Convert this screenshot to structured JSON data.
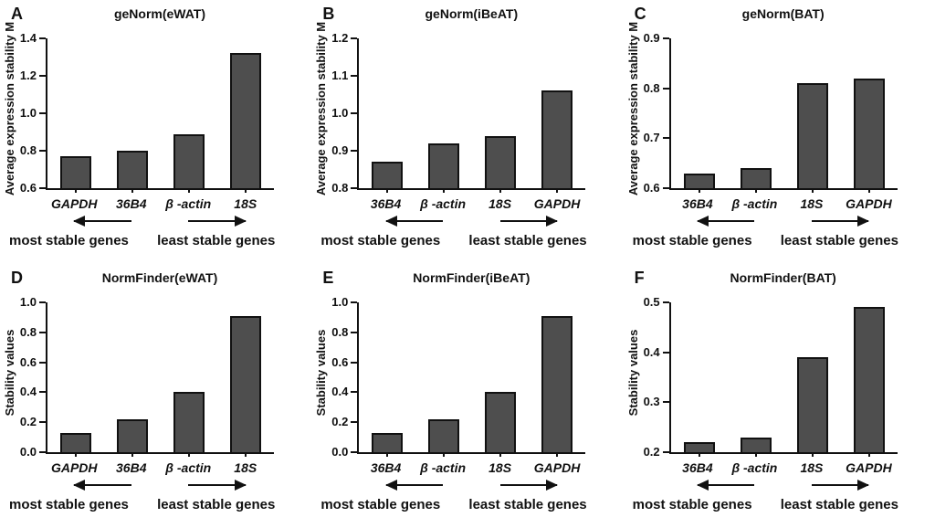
{
  "figure": {
    "background": "#ffffff",
    "bar_fill": "#4e4e4e",
    "bar_border": "#111111",
    "axis_color": "#111111",
    "text_color": "#111111",
    "most_stable_label": "most stable genes",
    "least_stable_label": "least stable genes",
    "left_arrow_icon": "left-arrow",
    "right_arrow_icon": "right-arrow"
  },
  "chart_data": [
    {
      "type": "bar",
      "panel": "A",
      "title": "geNorm(eWAT)",
      "xlabel": "",
      "ylabel": "Average expression stability M",
      "ylim": [
        0.6,
        1.4
      ],
      "yticks": [
        "0.6",
        "0.8",
        "1.0",
        "1.2",
        "1.4"
      ],
      "categories": [
        "GAPDH",
        "36B4",
        "β -actin",
        "18S"
      ],
      "values": [
        0.77,
        0.8,
        0.89,
        1.32
      ],
      "grid": false,
      "annotations": [
        "most stable genes",
        "least stable genes"
      ]
    },
    {
      "type": "bar",
      "panel": "B",
      "title": "geNorm(iBeAT)",
      "xlabel": "",
      "ylabel": "Average expression stability M",
      "ylim": [
        0.8,
        1.2
      ],
      "yticks": [
        "0.8",
        "0.9",
        "1.0",
        "1.1",
        "1.2"
      ],
      "categories": [
        "36B4",
        "β -actin",
        "18S",
        "GAPDH"
      ],
      "values": [
        0.87,
        0.92,
        0.94,
        1.06
      ],
      "grid": false,
      "annotations": [
        "most stable genes",
        "least stable genes"
      ]
    },
    {
      "type": "bar",
      "panel": "C",
      "title": "geNorm(BAT)",
      "xlabel": "",
      "ylabel": "Average expression stability M",
      "ylim": [
        0.6,
        0.9
      ],
      "yticks": [
        "0.6",
        "0.7",
        "0.8",
        "0.9"
      ],
      "categories": [
        "36B4",
        "β -actin",
        "18S",
        "GAPDH"
      ],
      "values": [
        0.63,
        0.64,
        0.81,
        0.82
      ],
      "grid": false,
      "annotations": [
        "most stable genes",
        "least stable genes"
      ]
    },
    {
      "type": "bar",
      "panel": "D",
      "title": "NormFinder(eWAT)",
      "xlabel": "",
      "ylabel": "Stability values",
      "ylim": [
        0.0,
        1.0
      ],
      "yticks": [
        "0.0",
        "0.2",
        "0.4",
        "0.6",
        "0.8",
        "1.0"
      ],
      "categories": [
        "GAPDH",
        "36B4",
        "β -actin",
        "18S"
      ],
      "values": [
        0.13,
        0.22,
        0.4,
        0.91
      ],
      "grid": false,
      "annotations": [
        "most stable genes",
        "least stable genes"
      ]
    },
    {
      "type": "bar",
      "panel": "E",
      "title": "NormFinder(iBeAT)",
      "xlabel": "",
      "ylabel": "Stability values",
      "ylim": [
        0.0,
        1.0
      ],
      "yticks": [
        "0.0",
        "0.2",
        "0.4",
        "0.6",
        "0.8",
        "1.0"
      ],
      "categories": [
        "36B4",
        "β -actin",
        "18S",
        "GAPDH"
      ],
      "values": [
        0.13,
        0.22,
        0.4,
        0.91
      ],
      "grid": false,
      "annotations": [
        "most stable genes",
        "least stable genes"
      ]
    },
    {
      "type": "bar",
      "panel": "F",
      "title": "NormFinder(BAT)",
      "xlabel": "",
      "ylabel": "Stability values",
      "ylim": [
        0.2,
        0.5
      ],
      "yticks": [
        "0.2",
        "0.3",
        "0.4",
        "0.5"
      ],
      "categories": [
        "36B4",
        "β -actin",
        "18S",
        "GAPDH"
      ],
      "values": [
        0.22,
        0.23,
        0.39,
        0.49
      ],
      "grid": false,
      "annotations": [
        "most stable genes",
        "least stable genes"
      ]
    }
  ]
}
